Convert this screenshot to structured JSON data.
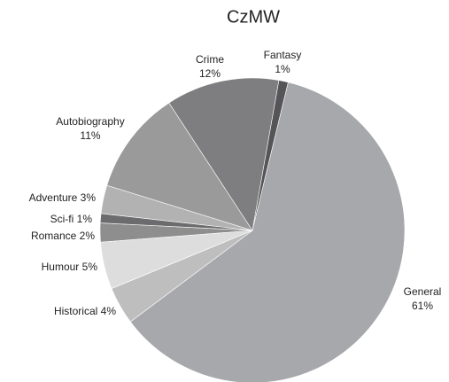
{
  "chart_data": {
    "type": "pie",
    "title": "CzMW",
    "categories": [
      "Fantasy",
      "General",
      "Historical",
      "Humour",
      "Romance",
      "Sci-fi",
      "Adventure",
      "Autobiography",
      "Crime"
    ],
    "values": [
      1,
      61,
      4,
      5,
      2,
      1,
      3,
      11,
      12
    ],
    "value_labels": [
      "1%",
      "61%",
      "4%",
      "5%",
      "2%",
      "1%",
      "3%",
      "11%",
      "12%"
    ],
    "colors": [
      "#555557",
      "#a7a8ab",
      "#bebebe",
      "#dddddd",
      "#8e8e8e",
      "#6c6c6e",
      "#b2b2b2",
      "#9a9a9b",
      "#7e7e80"
    ]
  }
}
